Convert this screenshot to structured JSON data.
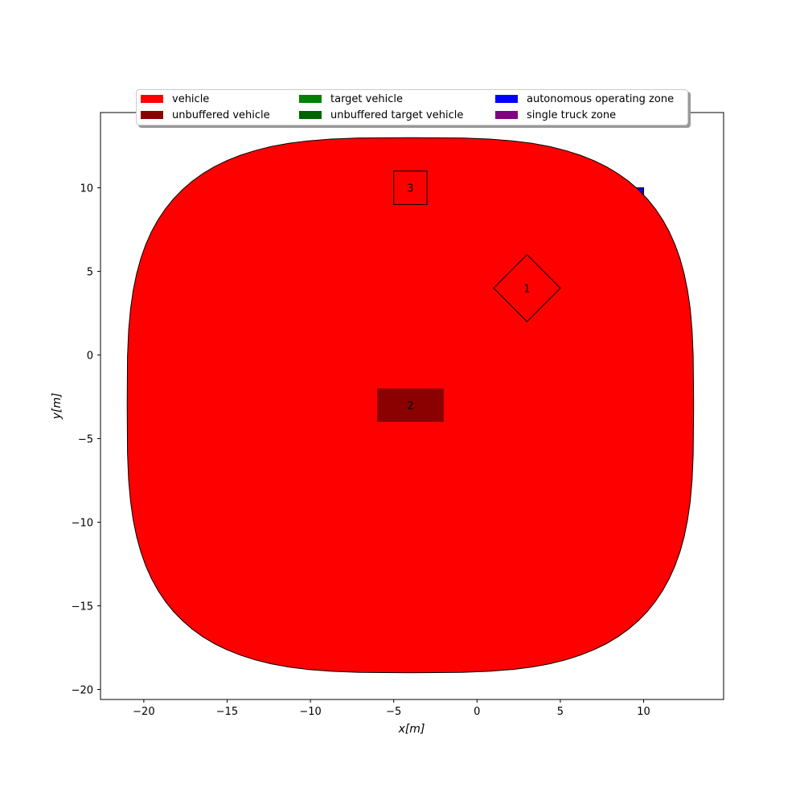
{
  "chart_data": {
    "type": "map",
    "xlabel": "x[m]",
    "ylabel": "y[m]",
    "xlim": [
      -22.6,
      14.8
    ],
    "ylim": [
      -20.6,
      14.5
    ],
    "grid": false,
    "legend_placement": "top-center",
    "xticks": [
      -20,
      -15,
      -10,
      -5,
      0,
      5,
      10
    ],
    "yticks": [
      -20,
      -15,
      -10,
      -5,
      0,
      5,
      10
    ],
    "xtick_labels": [
      "−20",
      "−15",
      "−10",
      "−5",
      "0",
      "5",
      "10"
    ],
    "ytick_labels": [
      "−20",
      "−15",
      "−10",
      "−5",
      "0",
      "5",
      "10"
    ],
    "legend": [
      {
        "label": "vehicle",
        "color": "#ff0000"
      },
      {
        "label": "unbuffered vehicle",
        "color": "#8b0000"
      },
      {
        "label": "target vehicle",
        "color": "#008000"
      },
      {
        "label": "unbuffered target vehicle",
        "color": "#006400"
      },
      {
        "label": "autonomous operating zone",
        "color": "#0000ff"
      },
      {
        "label": "single truck zone",
        "color": "#800080"
      }
    ],
    "zones": [
      {
        "kind": "autonomous operating zone",
        "color": "#0000ff",
        "x_range": [
          7,
          10
        ],
        "y_range": [
          7,
          10
        ]
      }
    ],
    "buffered_vehicle_region": {
      "color": "#ff0000",
      "center": [
        -4,
        -3
      ],
      "half_width": 17,
      "half_height": 16,
      "corner_radius": 8
    },
    "vehicles": [
      {
        "id": "1",
        "color": "none",
        "points": [
          [
            3,
            6
          ],
          [
            5,
            4
          ],
          [
            3,
            2
          ],
          [
            1,
            4
          ]
        ],
        "label_pos": [
          3,
          4
        ]
      },
      {
        "id": "2",
        "color": "#8b0000",
        "points": [
          [
            -6,
            -2
          ],
          [
            -2,
            -2
          ],
          [
            -2,
            -4
          ],
          [
            -6,
            -4
          ]
        ],
        "label_pos": [
          -4,
          -3
        ]
      },
      {
        "id": "3",
        "color": "none",
        "points": [
          [
            -5,
            11
          ],
          [
            -3,
            11
          ],
          [
            -3,
            9
          ],
          [
            -5,
            9
          ]
        ],
        "label_pos": [
          -4,
          10
        ]
      }
    ]
  }
}
